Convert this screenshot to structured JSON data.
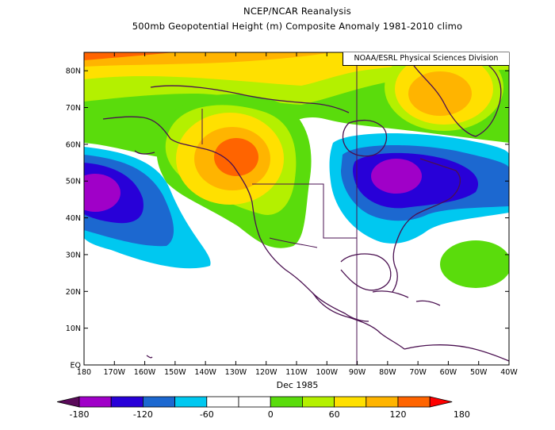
{
  "header": {
    "line1": "NCEP/NCAR Reanalysis",
    "line2": "500mb Geopotential Height (m) Composite Anomaly 1981-2010 climo"
  },
  "credit": "NOAA/ESRL Physical Sciences Division",
  "date_label": "Dec 1985",
  "map": {
    "lon_range": [
      -180,
      -40
    ],
    "lat_range": [
      0,
      85
    ],
    "lat_ticks": [
      "EQ",
      "10N",
      "20N",
      "30N",
      "40N",
      "50N",
      "60N",
      "70N",
      "80N"
    ],
    "lon_ticks": [
      "180",
      "170W",
      "160W",
      "150W",
      "140W",
      "130W",
      "120W",
      "110W",
      "100W",
      "90W",
      "80W",
      "70W",
      "60W",
      "50W",
      "40W"
    ]
  },
  "colorbar": {
    "colors": [
      "#5a0a5a",
      "#a000c8",
      "#2800d8",
      "#1c68d0",
      "#00c8f0",
      "#ffffff",
      "#ffffff",
      "#5adc0c",
      "#b4f000",
      "#ffe000",
      "#ffb400",
      "#ff6400",
      "#ff0000"
    ],
    "labels": [
      "-180",
      "-120",
      "-60",
      "0",
      "60",
      "120",
      "180"
    ]
  }
}
